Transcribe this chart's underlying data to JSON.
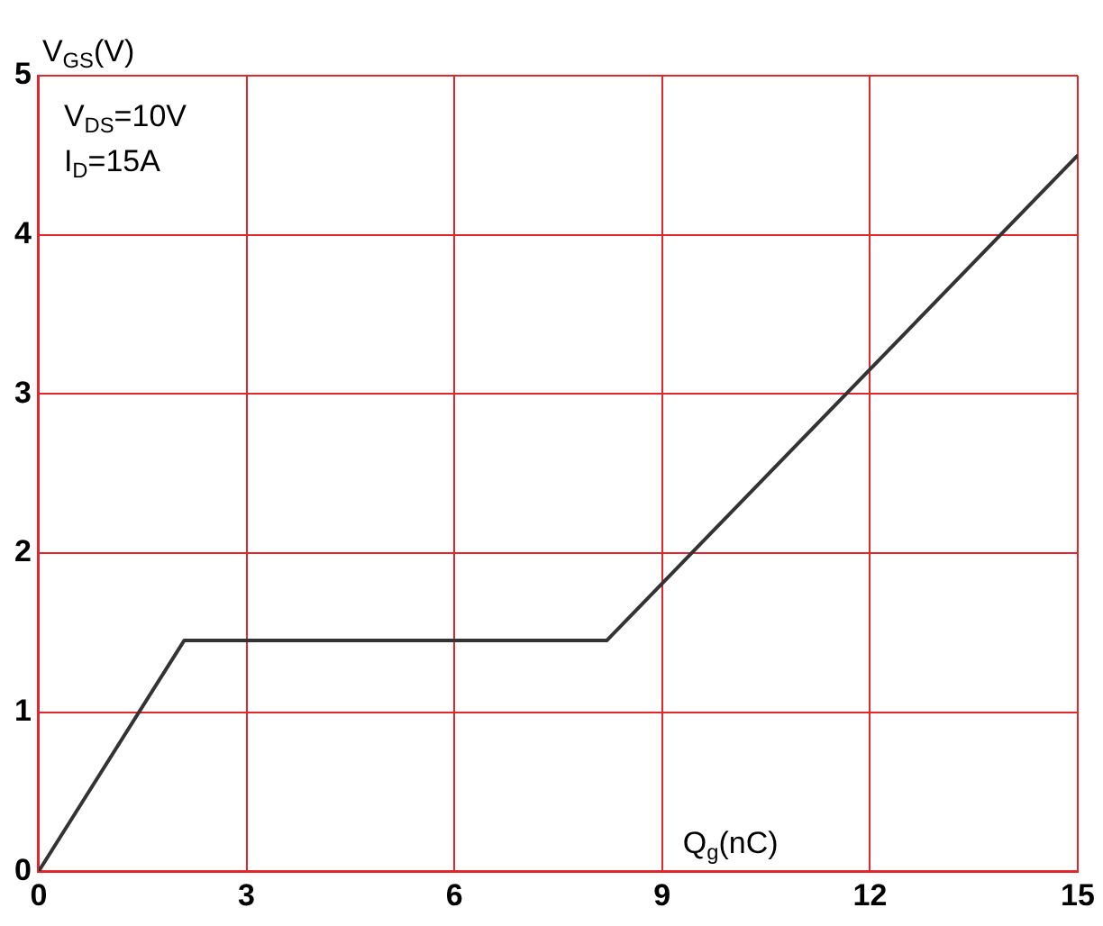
{
  "chart_data": {
    "type": "line",
    "xlabel": "Q$_{g}$(nC)",
    "ylabel": "V$_{GS}$(V)",
    "annotations": [
      "V$_{DS}$=10V",
      "I$_{D}$=15A"
    ],
    "x": [
      0,
      2.1,
      8.2,
      15
    ],
    "series": [
      {
        "color": "#333333",
        "values": [
          0,
          1.45,
          1.45,
          4.5
        ]
      }
    ],
    "xlim": [
      0,
      15
    ],
    "xticks": [
      0,
      3,
      6,
      9,
      12,
      15
    ],
    "ylim": [
      0,
      5
    ],
    "yticks": [
      0,
      1,
      2,
      3,
      4,
      5
    ],
    "grid": true,
    "legend": false,
    "marker": "none",
    "line_style": "solid"
  }
}
